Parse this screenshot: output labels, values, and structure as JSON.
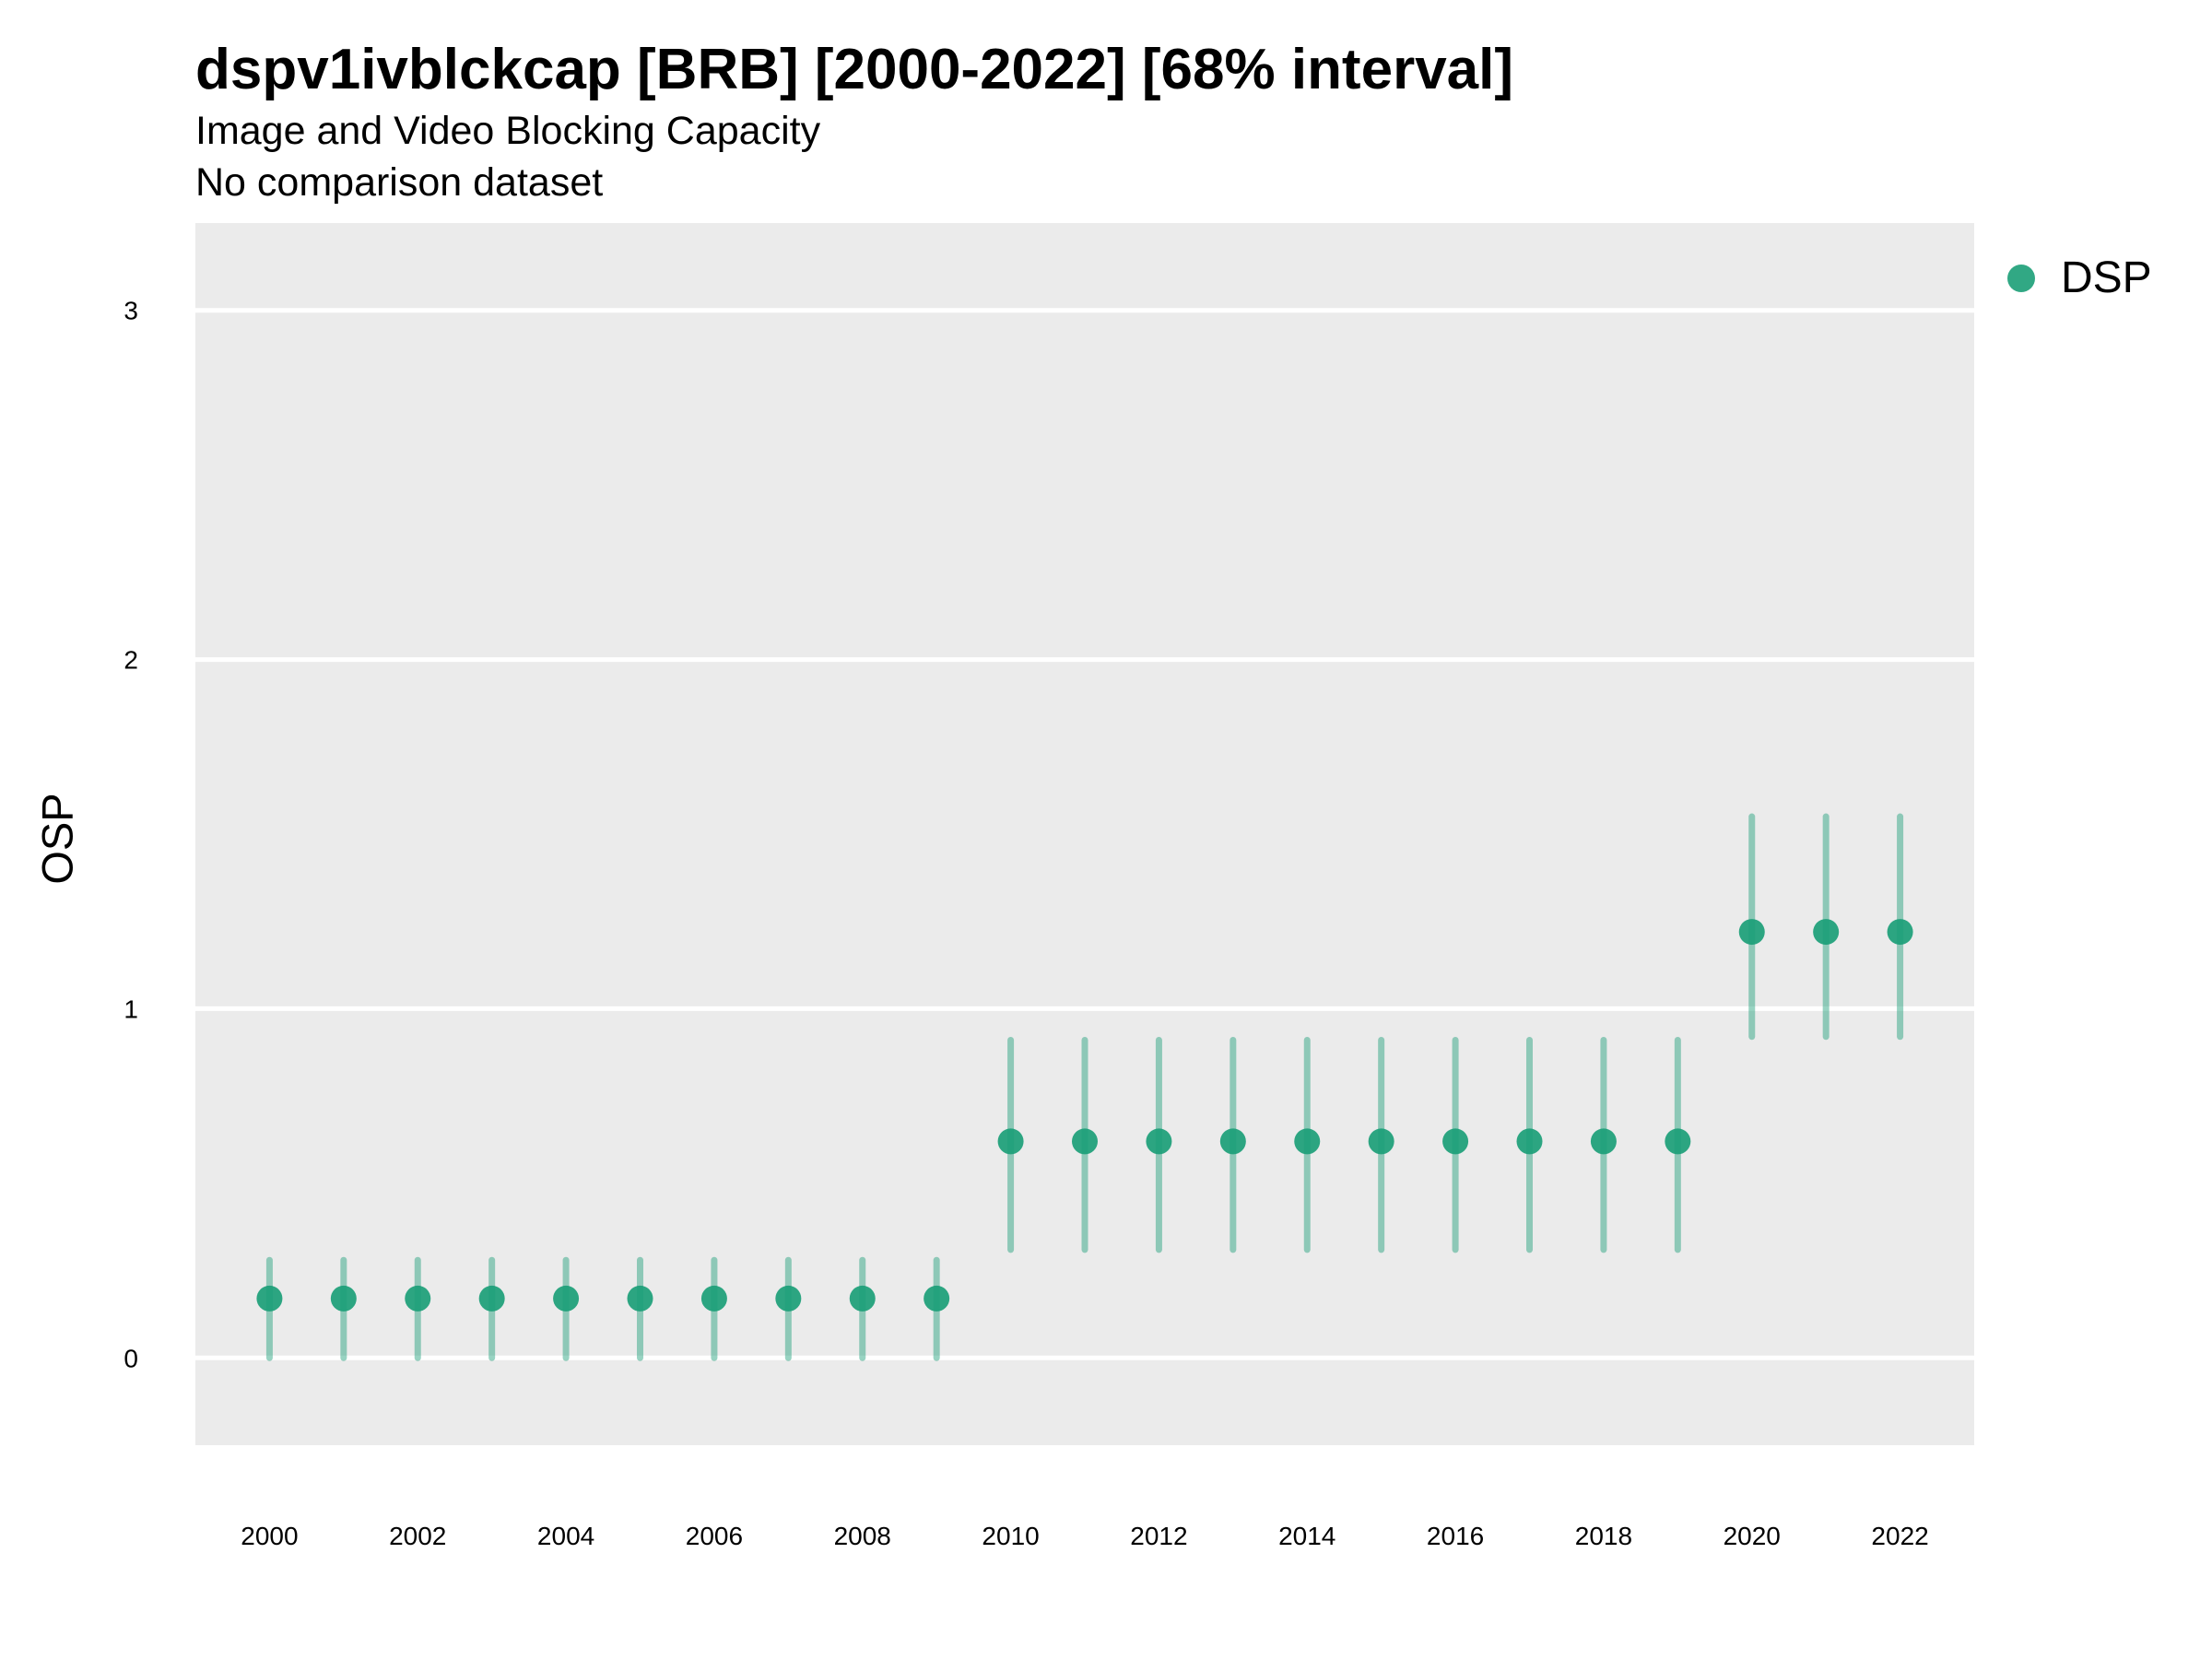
{
  "chart_data": {
    "type": "scatter",
    "title": "dspv1ivblckcap [BRB] [2000-2022] [68% interval]",
    "subtitle": "Image and Video Blocking Capacity",
    "caption": "No comparison dataset",
    "xlabel": "",
    "ylabel": "OSP",
    "xlim": [
      1999,
      2023
    ],
    "ylim": [
      -0.25,
      3.25
    ],
    "x_ticks": [
      "2000",
      "2002",
      "2004",
      "2006",
      "2008",
      "2010",
      "2012",
      "2014",
      "2016",
      "2018",
      "2020",
      "2022"
    ],
    "y_ticks": [
      "0",
      "1",
      "2",
      "3"
    ],
    "grid": true,
    "legend": "right",
    "series": [
      {
        "name": "DSP",
        "color": "#1b9e77",
        "x": [
          2000,
          2001,
          2002,
          2003,
          2004,
          2005,
          2006,
          2007,
          2008,
          2009,
          2010,
          2011,
          2012,
          2013,
          2014,
          2015,
          2016,
          2017,
          2018,
          2019,
          2020,
          2021,
          2022
        ],
        "y": [
          0.17,
          0.17,
          0.17,
          0.17,
          0.17,
          0.17,
          0.17,
          0.17,
          0.17,
          0.17,
          0.62,
          0.62,
          0.62,
          0.62,
          0.62,
          0.62,
          0.62,
          0.62,
          0.62,
          0.62,
          1.22,
          1.22,
          1.22
        ],
        "lower": [
          0.0,
          0.0,
          0.0,
          0.0,
          0.0,
          0.0,
          0.0,
          0.0,
          0.0,
          0.0,
          0.31,
          0.31,
          0.31,
          0.31,
          0.31,
          0.31,
          0.31,
          0.31,
          0.31,
          0.31,
          0.92,
          0.92,
          0.92
        ],
        "upper": [
          0.28,
          0.28,
          0.28,
          0.28,
          0.28,
          0.28,
          0.28,
          0.28,
          0.28,
          0.28,
          0.91,
          0.91,
          0.91,
          0.91,
          0.91,
          0.91,
          0.91,
          0.91,
          0.91,
          0.91,
          1.55,
          1.55,
          1.55
        ]
      }
    ]
  }
}
